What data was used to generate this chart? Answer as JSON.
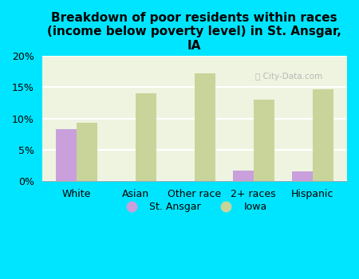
{
  "title": "Breakdown of poor residents within races\n(income below poverty level) in St. Ansgar,\nIA",
  "categories": [
    "White",
    "Asian",
    "Other race",
    "2+ races",
    "Hispanic"
  ],
  "st_ansgar": [
    8.3,
    0,
    0,
    1.7,
    1.5
  ],
  "iowa": [
    9.3,
    14.0,
    17.2,
    13.0,
    14.7
  ],
  "st_ansgar_color": "#c9a0dc",
  "iowa_color": "#c8d49a",
  "background_color": "#00e5ff",
  "plot_bg_color": "#eef4e0",
  "ylim": [
    0,
    20
  ],
  "yticks": [
    0,
    5,
    10,
    15,
    20
  ],
  "bar_width": 0.35,
  "legend_labels": [
    "St. Ansgar",
    "Iowa"
  ],
  "watermark": "City-Data.com"
}
